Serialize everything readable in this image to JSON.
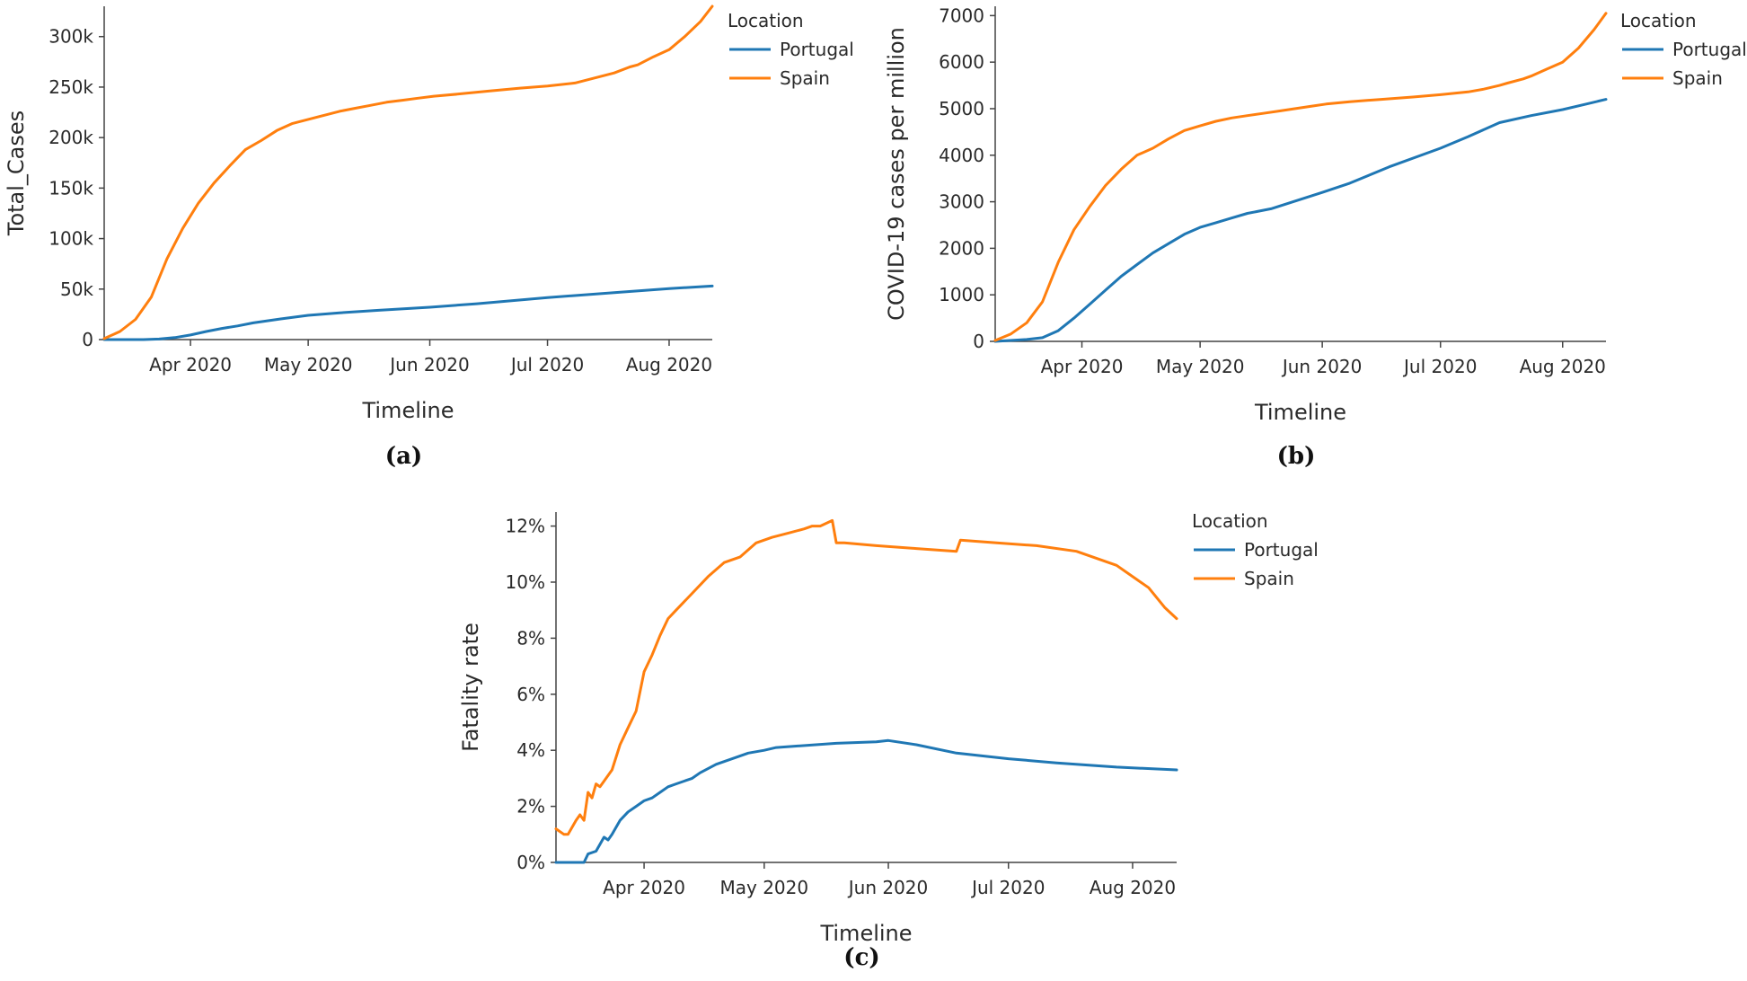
{
  "colors": {
    "Portugal": "#1f77b4",
    "Spain": "#ff7f0e"
  },
  "chart_data": [
    {
      "id": "a",
      "type": "line",
      "caption": "(a)",
      "xlabel": "Timeline",
      "ylabel": "Total_Cases",
      "legend_title": "Location",
      "legend_position": "top-right",
      "x_domain": [
        0,
        155
      ],
      "x_ticks": [
        {
          "value": 22,
          "label": "Apr 2020"
        },
        {
          "value": 52,
          "label": "May 2020"
        },
        {
          "value": 83,
          "label": "Jun 2020"
        },
        {
          "value": 113,
          "label": "Jul 2020"
        },
        {
          "value": 144,
          "label": "Aug 2020"
        }
      ],
      "ylim": [
        0,
        330000
      ],
      "y_ticks": [
        {
          "value": 0,
          "label": "0"
        },
        {
          "value": 50000,
          "label": "50k"
        },
        {
          "value": 100000,
          "label": "100k"
        },
        {
          "value": 150000,
          "label": "150k"
        },
        {
          "value": 200000,
          "label": "200k"
        },
        {
          "value": 250000,
          "label": "250k"
        },
        {
          "value": 300000,
          "label": "300k"
        }
      ],
      "series": [
        {
          "name": "Portugal",
          "x": [
            0,
            10,
            14,
            18,
            22,
            26,
            30,
            34,
            38,
            45,
            52,
            60,
            70,
            83,
            95,
            113,
            130,
            144,
            155
          ],
          "y": [
            0,
            0,
            500,
            2000,
            4500,
            8000,
            11000,
            13500,
            16500,
            20500,
            24000,
            26500,
            29000,
            32000,
            35500,
            41500,
            46500,
            50500,
            53000
          ]
        },
        {
          "name": "Spain",
          "x": [
            0,
            4,
            8,
            12,
            16,
            20,
            24,
            28,
            32,
            36,
            40,
            44,
            48,
            52,
            56,
            60,
            64,
            68,
            72,
            76,
            80,
            84,
            90,
            98,
            106,
            113,
            120,
            124,
            128,
            130,
            134,
            136,
            140,
            144,
            148,
            152,
            155
          ],
          "y": [
            1000,
            8000,
            20000,
            42000,
            80000,
            110000,
            135000,
            155000,
            172000,
            188000,
            197000,
            207000,
            214000,
            218000,
            222000,
            226000,
            229000,
            232000,
            235000,
            237000,
            239000,
            241000,
            243000,
            246000,
            249000,
            251000,
            254000,
            258000,
            262000,
            264000,
            270000,
            272000,
            280000,
            287000,
            300000,
            315000,
            330000
          ]
        }
      ]
    },
    {
      "id": "b",
      "type": "line",
      "caption": "(b)",
      "xlabel": "Timeline",
      "ylabel": "COVID-19 cases per million",
      "legend_title": "Location",
      "legend_position": "top-right",
      "x_domain": [
        0,
        155
      ],
      "x_ticks": [
        {
          "value": 22,
          "label": "Apr 2020"
        },
        {
          "value": 52,
          "label": "May 2020"
        },
        {
          "value": 83,
          "label": "Jun 2020"
        },
        {
          "value": 113,
          "label": "Jul 2020"
        },
        {
          "value": 144,
          "label": "Aug 2020"
        }
      ],
      "ylim": [
        0,
        7200
      ],
      "y_ticks": [
        {
          "value": 0,
          "label": "0"
        },
        {
          "value": 1000,
          "label": "1000"
        },
        {
          "value": 2000,
          "label": "2000"
        },
        {
          "value": 3000,
          "label": "3000"
        },
        {
          "value": 4000,
          "label": "4000"
        },
        {
          "value": 5000,
          "label": "5000"
        },
        {
          "value": 6000,
          "label": "6000"
        },
        {
          "value": 7000,
          "label": "7000"
        }
      ],
      "series": [
        {
          "name": "Portugal",
          "x": [
            0,
            8,
            12,
            16,
            20,
            24,
            28,
            32,
            36,
            40,
            44,
            48,
            52,
            56,
            60,
            64,
            70,
            83,
            90,
            100,
            113,
            120,
            128,
            136,
            144,
            150,
            155
          ],
          "y": [
            0,
            40,
            80,
            230,
            500,
            800,
            1100,
            1400,
            1650,
            1900,
            2100,
            2300,
            2450,
            2550,
            2650,
            2750,
            2850,
            3200,
            3400,
            3750,
            4150,
            4400,
            4700,
            4850,
            4980,
            5100,
            5200
          ]
        },
        {
          "name": "Spain",
          "x": [
            0,
            4,
            8,
            12,
            16,
            20,
            24,
            28,
            32,
            36,
            40,
            44,
            48,
            52,
            56,
            60,
            64,
            68,
            72,
            76,
            80,
            84,
            90,
            98,
            106,
            113,
            120,
            124,
            128,
            130,
            134,
            136,
            140,
            144,
            148,
            152,
            155
          ],
          "y": [
            20,
            160,
            400,
            850,
            1700,
            2400,
            2900,
            3350,
            3700,
            4000,
            4150,
            4350,
            4530,
            4630,
            4730,
            4800,
            4850,
            4900,
            4950,
            5000,
            5050,
            5100,
            5150,
            5200,
            5250,
            5300,
            5360,
            5420,
            5500,
            5550,
            5640,
            5700,
            5850,
            6000,
            6300,
            6700,
            7050
          ]
        }
      ]
    },
    {
      "id": "c",
      "type": "line",
      "caption": "(c)",
      "xlabel": "Timeline",
      "ylabel": "Fatality rate",
      "legend_title": "Location",
      "legend_position": "top-right",
      "x_domain": [
        0,
        155
      ],
      "x_ticks": [
        {
          "value": 22,
          "label": "Apr 2020"
        },
        {
          "value": 52,
          "label": "May 2020"
        },
        {
          "value": 83,
          "label": "Jun 2020"
        },
        {
          "value": 113,
          "label": "Jul 2020"
        },
        {
          "value": 144,
          "label": "Aug 2020"
        }
      ],
      "ylim": [
        0,
        12.5
      ],
      "y_ticks": [
        {
          "value": 0,
          "label": "0%"
        },
        {
          "value": 2,
          "label": "2%"
        },
        {
          "value": 4,
          "label": "4%"
        },
        {
          "value": 6,
          "label": "6%"
        },
        {
          "value": 8,
          "label": "8%"
        },
        {
          "value": 10,
          "label": "10%"
        },
        {
          "value": 12,
          "label": "12%"
        }
      ],
      "series": [
        {
          "name": "Portugal",
          "x": [
            0,
            7,
            8,
            10,
            12,
            13,
            14,
            16,
            18,
            20,
            22,
            24,
            26,
            28,
            30,
            32,
            34,
            36,
            40,
            44,
            48,
            52,
            55,
            60,
            70,
            80,
            83,
            90,
            100,
            113,
            125,
            140,
            155
          ],
          "y": [
            0,
            0,
            0.3,
            0.4,
            0.9,
            0.8,
            1.0,
            1.5,
            1.8,
            2.0,
            2.2,
            2.3,
            2.5,
            2.7,
            2.8,
            2.9,
            3.0,
            3.2,
            3.5,
            3.7,
            3.9,
            4.0,
            4.1,
            4.15,
            4.25,
            4.3,
            4.35,
            4.2,
            3.9,
            3.7,
            3.55,
            3.4,
            3.3
          ]
        },
        {
          "name": "Spain",
          "x": [
            0,
            2,
            3,
            5,
            6,
            7,
            8,
            9,
            10,
            11,
            12,
            14,
            16,
            18,
            20,
            22,
            24,
            26,
            28,
            30,
            34,
            38,
            42,
            46,
            50,
            54,
            58,
            62,
            64,
            66,
            69,
            70,
            72,
            80,
            90,
            100,
            101,
            110,
            120,
            130,
            140,
            145,
            148,
            152,
            155
          ],
          "y": [
            1.2,
            1.0,
            1.0,
            1.5,
            1.7,
            1.5,
            2.5,
            2.3,
            2.8,
            2.7,
            2.9,
            3.3,
            4.2,
            4.8,
            5.4,
            6.8,
            7.4,
            8.1,
            8.7,
            9.0,
            9.6,
            10.2,
            10.7,
            10.9,
            11.4,
            11.6,
            11.75,
            11.9,
            12.0,
            12.0,
            12.2,
            11.4,
            11.4,
            11.3,
            11.2,
            11.1,
            11.5,
            11.4,
            11.3,
            11.1,
            10.6,
            10.1,
            9.8,
            9.1,
            8.7
          ]
        }
      ]
    }
  ]
}
